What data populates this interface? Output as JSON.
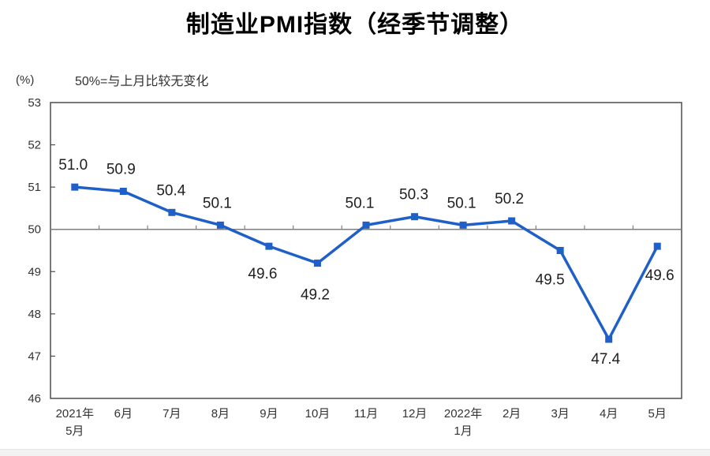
{
  "chart_data": {
    "type": "line",
    "title": "制造业PMI指数（经季节调整）",
    "unit_label": "(%)",
    "note": "50%=与上月比较无变化",
    "categories": [
      "2021年\n5月",
      "6月",
      "7月",
      "8月",
      "9月",
      "10月",
      "11月",
      "12月",
      "2022年\n1月",
      "2月",
      "3月",
      "4月",
      "5月"
    ],
    "series": [
      {
        "name": "制造业PMI",
        "values": [
          51.0,
          50.9,
          50.4,
          50.1,
          49.6,
          49.2,
          50.1,
          50.3,
          50.1,
          50.2,
          49.5,
          47.4,
          49.6
        ]
      }
    ],
    "value_label_format": "one-decimal",
    "label_positions": [
      "above",
      "above",
      "above",
      "above",
      "below",
      "below",
      "above",
      "above",
      "above",
      "above",
      "below",
      "below",
      "below"
    ],
    "label_dx": [
      -2,
      -3,
      -1,
      -4,
      -8,
      -3,
      -8,
      -1,
      -2,
      -3,
      -13,
      -4,
      3
    ],
    "label_dy": [
      -28,
      -28,
      -28,
      -28,
      35,
      40,
      -28,
      -28,
      -28,
      -28,
      37,
      25,
      37
    ],
    "ylim": [
      46,
      53
    ],
    "y_ticks": [
      53,
      52,
      51,
      50,
      49,
      48,
      47,
      46
    ],
    "reference_line": 50,
    "grid": "off",
    "legend": "none",
    "colors": {
      "line": "#1f5fc8",
      "marker": "#1f5fc8",
      "axis_border": "#4d4d4d",
      "reference_line": "#7f7f7f",
      "tick_label": "#333333",
      "value_label": "#1f1f1f",
      "title": "#000000"
    }
  }
}
